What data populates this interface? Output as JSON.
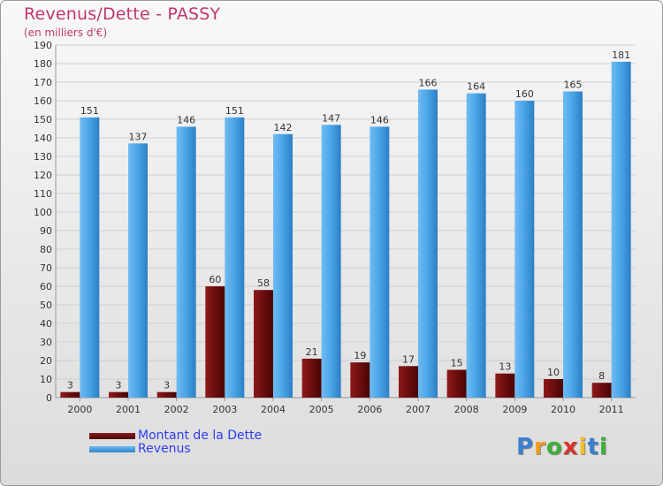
{
  "title": "Revenus/Dette - PASSY",
  "subtitle": "(en milliers d'€)",
  "colors": {
    "debt": "#6b0d0d",
    "revenue": "#4aa3e6",
    "grid": "#cfcfcf",
    "axis_text": "#333333",
    "title": "#c0366e",
    "legend_text": "#2f3df2"
  },
  "chart_data": {
    "type": "bar",
    "title": "Revenus/Dette - PASSY",
    "subtitle": "(en milliers d'€)",
    "xlabel": "",
    "ylabel": "",
    "ylim": [
      0,
      190
    ],
    "ytick_step": 10,
    "grid": true,
    "categories": [
      "2000",
      "2001",
      "2002",
      "2003",
      "2004",
      "2005",
      "2006",
      "2007",
      "2008",
      "2009",
      "2010",
      "2011"
    ],
    "series": [
      {
        "name": "Montant de la Dette",
        "color": "#6b0d0d",
        "values": [
          3,
          3,
          3,
          60,
          58,
          21,
          19,
          17,
          15,
          13,
          10,
          8
        ]
      },
      {
        "name": "Revenus",
        "color": "#4aa3e6",
        "values": [
          151,
          137,
          146,
          151,
          142,
          147,
          146,
          166,
          164,
          160,
          165,
          181
        ]
      }
    ]
  },
  "legend": [
    {
      "label": "Montant de la Dette",
      "color": "#6b0d0d"
    },
    {
      "label": "Revenus",
      "color": "#4aa3e6"
    }
  ],
  "logo": {
    "letters": [
      "P",
      "r",
      "o",
      "x",
      "i",
      "t",
      "i"
    ],
    "colors": [
      "#3a7fd0",
      "#f09a1a",
      "#3fae3a",
      "#d8322a",
      "#f0c020",
      "#3a7fd0",
      "#3fae3a"
    ]
  }
}
